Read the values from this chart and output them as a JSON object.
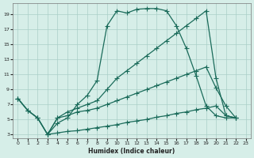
{
  "xlabel": "Humidex (Indice chaleur)",
  "bg_color": "#d6eee8",
  "grid_color": "#aacfc8",
  "line_color": "#1a6b5a",
  "xlim": [
    -0.5,
    23.5
  ],
  "ylim": [
    2.5,
    20.5
  ],
  "xticks": [
    0,
    1,
    2,
    3,
    4,
    5,
    6,
    7,
    8,
    9,
    10,
    11,
    12,
    13,
    14,
    15,
    16,
    17,
    18,
    19,
    20,
    21,
    22,
    23
  ],
  "yticks": [
    3,
    5,
    7,
    9,
    11,
    13,
    15,
    17,
    19
  ],
  "line1_x": [
    0,
    1,
    2,
    3,
    4,
    5,
    6,
    7,
    8,
    9,
    10,
    11,
    12,
    13,
    14,
    15,
    16,
    17,
    18,
    19,
    20,
    21,
    22
  ],
  "line1_y": [
    7.8,
    6.2,
    5.2,
    3.0,
    4.5,
    5.2,
    7.0,
    8.2,
    10.2,
    17.5,
    19.5,
    19.2,
    19.7,
    19.8,
    19.8,
    19.5,
    17.5,
    14.5,
    10.8,
    6.8,
    5.5,
    5.2,
    5.2
  ],
  "line2_x": [
    0,
    1,
    2,
    3,
    4,
    5,
    6,
    7,
    8,
    9,
    10,
    11,
    12,
    13,
    14,
    15,
    16,
    17,
    18,
    19,
    20,
    21,
    22
  ],
  "line2_y": [
    7.8,
    6.2,
    5.2,
    3.0,
    5.2,
    6.0,
    6.5,
    7.0,
    7.5,
    9.0,
    10.5,
    11.5,
    12.5,
    13.5,
    14.5,
    15.5,
    16.5,
    17.5,
    18.5,
    19.5,
    10.5,
    5.5,
    5.2
  ],
  "line3_x": [
    0,
    1,
    2,
    3,
    4,
    5,
    6,
    7,
    8,
    9,
    10,
    11,
    12,
    13,
    14,
    15,
    16,
    17,
    18,
    19,
    20,
    21,
    22
  ],
  "line3_y": [
    7.8,
    6.2,
    5.2,
    3.0,
    5.2,
    5.5,
    6.0,
    6.2,
    6.5,
    7.0,
    7.5,
    8.0,
    8.5,
    9.0,
    9.5,
    10.0,
    10.5,
    11.0,
    11.5,
    12.0,
    9.2,
    6.8,
    5.2
  ],
  "line4_x": [
    3,
    4,
    5,
    6,
    7,
    8,
    9,
    10,
    11,
    12,
    13,
    14,
    15,
    16,
    17,
    18,
    19,
    20,
    21,
    22
  ],
  "line4_y": [
    3.0,
    3.2,
    3.4,
    3.5,
    3.7,
    3.9,
    4.1,
    4.3,
    4.6,
    4.8,
    5.0,
    5.3,
    5.5,
    5.8,
    6.0,
    6.3,
    6.5,
    6.8,
    5.5,
    5.2
  ]
}
